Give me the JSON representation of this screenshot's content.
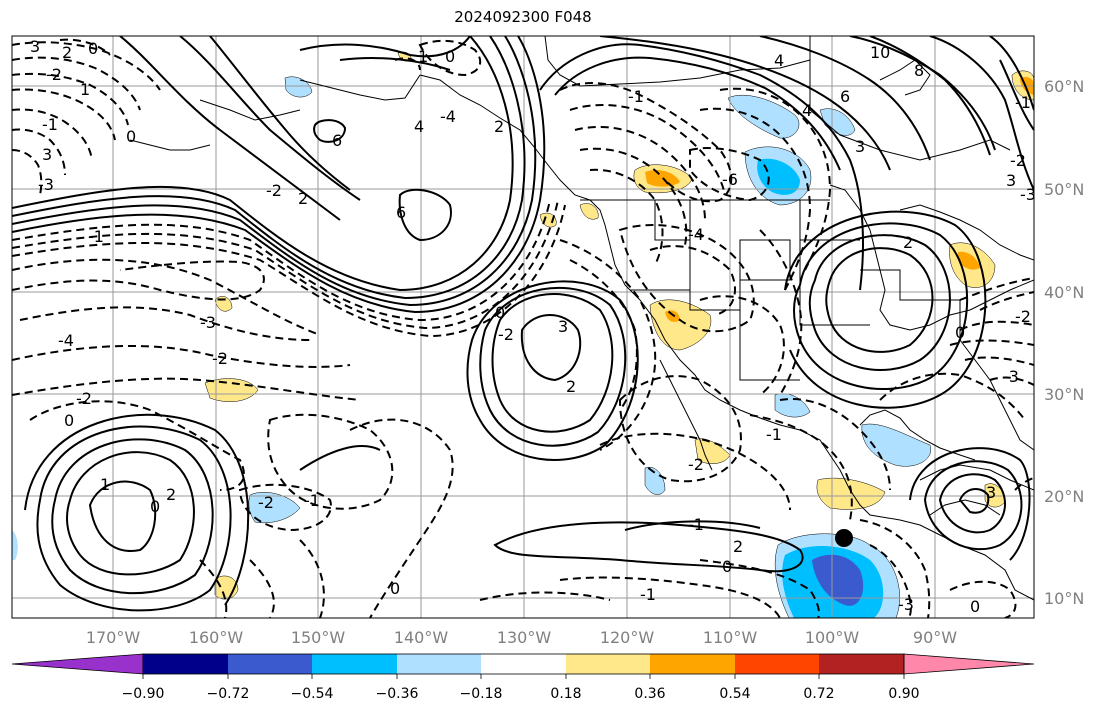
{
  "title": "2024092300 F048",
  "colors": {
    "colorbar": [
      "#9932CC",
      "#00008B",
      "#3A5ACD",
      "#00BFFF",
      "#B0E0FF",
      "#FFFFFF",
      "#FFE88A",
      "#FFA500",
      "#FF4500",
      "#B22222",
      "#FF88AA"
    ],
    "contour": "#000000",
    "grid": "#999999",
    "coast": "#000000"
  },
  "axes": {
    "lon_ticks": [
      "170°W",
      "160°W",
      "150°W",
      "140°W",
      "130°W",
      "120°W",
      "110°W",
      "100°W",
      "90°W"
    ],
    "lat_ticks": [
      "60°N",
      "50°N",
      "40°N",
      "30°N",
      "20°N",
      "10°N"
    ]
  },
  "colorbar": {
    "ticks": [
      "−0.90",
      "−0.72",
      "−0.54",
      "−0.36",
      "−0.18",
      "0.18",
      "0.36",
      "0.54",
      "0.72",
      "0.90"
    ]
  },
  "contour_labels": [
    "3",
    "-2",
    "2",
    "0",
    "1",
    "-1",
    "3",
    "0",
    "-3",
    "4",
    "6",
    "6",
    "-2",
    "2",
    "-1",
    "0",
    "10",
    "8",
    "6",
    "-6",
    "3",
    "-1",
    "4",
    "4",
    "2",
    "-4",
    "-2",
    "-3",
    "0",
    "-2",
    "-2",
    "0",
    "3",
    "-4",
    "2",
    "-1",
    "3",
    "-2",
    "-3",
    "2",
    "0",
    "-2",
    "0",
    "2",
    "1",
    "-1",
    "-1",
    "2",
    "-1",
    "-2",
    "0",
    "-2",
    "-1",
    "3",
    "0",
    "1",
    "0",
    "-4",
    "-3",
    "-3"
  ],
  "markers": [
    {
      "name": "storm-center",
      "lon": -100.5,
      "lat": 16.2
    }
  ]
}
